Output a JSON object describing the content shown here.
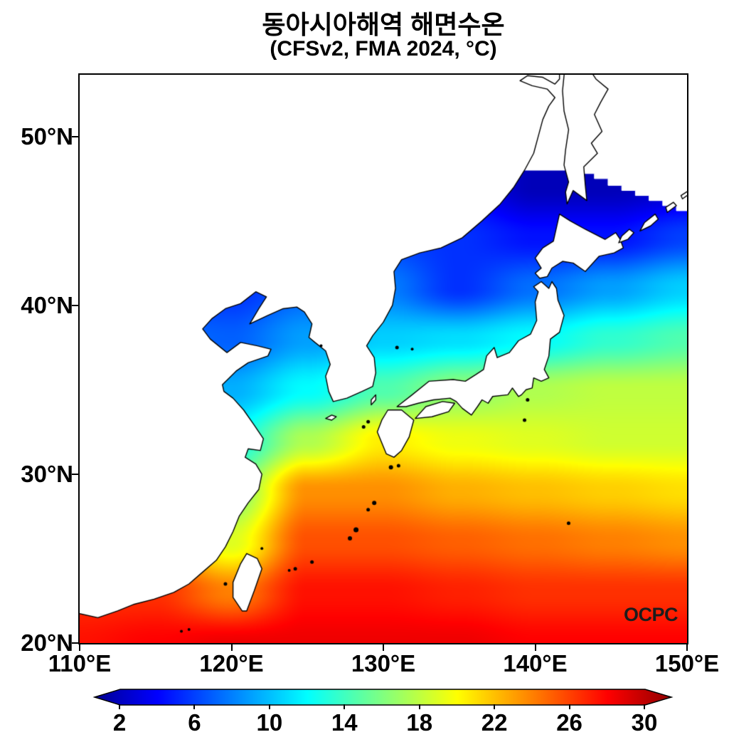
{
  "title": {
    "line1": "동아시아해역 해면수온",
    "line2": "(CFSv2, FMA 2024, °C)"
  },
  "watermark": "OCPC",
  "axes": {
    "x_ticks": [
      {
        "label": "110°E",
        "lon": 110
      },
      {
        "label": "120°E",
        "lon": 120
      },
      {
        "label": "130°E",
        "lon": 130
      },
      {
        "label": "140°E",
        "lon": 140
      },
      {
        "label": "150°E",
        "lon": 150
      }
    ],
    "y_ticks": [
      {
        "label": "50°N",
        "lat": 50
      },
      {
        "label": "40°N",
        "lat": 40
      },
      {
        "label": "30°N",
        "lat": 30
      },
      {
        "label": "20°N",
        "lat": 20
      }
    ]
  },
  "colorbar": {
    "unit": "°C",
    "scale_min": 0,
    "scale_max": 32,
    "ticks": [
      {
        "label": "2",
        "value": 2
      },
      {
        "label": "6",
        "value": 6
      },
      {
        "label": "10",
        "value": 10
      },
      {
        "label": "14",
        "value": 14
      },
      {
        "label": "18",
        "value": 18
      },
      {
        "label": "22",
        "value": 22
      },
      {
        "label": "26",
        "value": 26
      },
      {
        "label": "30",
        "value": 30
      }
    ],
    "extend": "both"
  },
  "chart_data": {
    "type": "heatmap",
    "title": "동아시아해역 해면수온 (CFSv2, FMA 2024, °C)",
    "colormap": "jet",
    "value_range": [
      0,
      32
    ],
    "lon_range": [
      110,
      150
    ],
    "lat_range": [
      20,
      53.65
    ],
    "lons": [
      110,
      115,
      120,
      125,
      130,
      135,
      140,
      145,
      150
    ],
    "lats": [
      20,
      23,
      26,
      29,
      32,
      35,
      38,
      41,
      44,
      47,
      50,
      53
    ],
    "sst_grid": [
      [
        27.5,
        28.0,
        28.5,
        28.5,
        28.5,
        28.5,
        28.0,
        28.0,
        28.0
      ],
      [
        26.5,
        26.5,
        24.0,
        27.5,
        27.5,
        27.0,
        26.5,
        26.5,
        26.5
      ],
      [
        24.5,
        23.0,
        19.0,
        25.5,
        25.5,
        25.0,
        24.5,
        24.0,
        23.5
      ],
      [
        20.0,
        19.0,
        16.0,
        23.5,
        23.5,
        22.5,
        22.0,
        21.5,
        21.0
      ],
      [
        15.0,
        14.5,
        12.5,
        17.5,
        20.5,
        19.5,
        19.0,
        18.5,
        18.5
      ],
      [
        11.0,
        10.5,
        9.5,
        12.0,
        14.5,
        16.5,
        17.5,
        18.0,
        18.0
      ],
      [
        8.0,
        7.5,
        7.0,
        9.0,
        10.5,
        11.0,
        12.0,
        13.5,
        14.5
      ],
      [
        6.0,
        5.5,
        5.5,
        7.0,
        8.0,
        5.5,
        7.5,
        9.0,
        10.5
      ],
      [
        4.0,
        4.0,
        4.0,
        5.0,
        6.0,
        5.5,
        4.5,
        4.5,
        6.0
      ],
      [
        2.5,
        2.5,
        2.5,
        3.5,
        4.5,
        4.0,
        1.8,
        1.8,
        2.5
      ],
      [
        2.0,
        2.0,
        2.0,
        3.0,
        4.0,
        3.5,
        1.8,
        1.5,
        2.0
      ],
      [
        2.0,
        2.0,
        2.0,
        3.0,
        3.5,
        3.0,
        1.8,
        1.5,
        2.0
      ]
    ],
    "nodata_mask": {
      "north_rect": [
        [
          109.7,
          48.0
        ],
        [
          142.0,
          48.0
        ],
        [
          142.0,
          54.5
        ],
        [
          109.7,
          54.5
        ]
      ],
      "okhotsk_stair_boundary": [
        [
          141.9,
          48.1
        ],
        [
          143.0,
          47.8
        ],
        [
          143.9,
          47.5
        ],
        [
          144.8,
          47.1
        ],
        [
          145.7,
          46.8
        ],
        [
          146.6,
          46.5
        ],
        [
          147.5,
          46.2
        ],
        [
          148.4,
          45.9
        ],
        [
          149.3,
          45.6
        ],
        [
          150.4,
          45.4
        ]
      ]
    },
    "coastlines": {
      "mainland_asia_korea": [
        [
          109.7,
          21.8
        ],
        [
          111.2,
          21.5
        ],
        [
          112.5,
          21.9
        ],
        [
          113.6,
          22.3
        ],
        [
          114.9,
          22.6
        ],
        [
          116.2,
          23.0
        ],
        [
          117.2,
          23.5
        ],
        [
          118.1,
          24.2
        ],
        [
          119.0,
          24.9
        ],
        [
          119.6,
          25.7
        ],
        [
          120.1,
          26.6
        ],
        [
          120.5,
          27.5
        ],
        [
          121.1,
          28.3
        ],
        [
          121.8,
          29.1
        ],
        [
          122.0,
          30.0
        ],
        [
          121.6,
          30.6
        ],
        [
          120.9,
          31.0
        ],
        [
          121.1,
          31.5
        ],
        [
          121.9,
          31.4
        ],
        [
          122.1,
          32.1
        ],
        [
          121.5,
          32.9
        ],
        [
          120.8,
          33.8
        ],
        [
          120.1,
          34.5
        ],
        [
          119.5,
          34.9
        ],
        [
          119.4,
          35.3
        ],
        [
          120.3,
          36.1
        ],
        [
          121.1,
          36.6
        ],
        [
          122.4,
          37.0
        ],
        [
          122.6,
          37.4
        ],
        [
          121.7,
          37.6
        ],
        [
          120.6,
          37.8
        ],
        [
          119.7,
          37.2
        ],
        [
          118.6,
          38.0
        ],
        [
          118.1,
          38.6
        ],
        [
          118.7,
          39.2
        ],
        [
          119.6,
          39.8
        ],
        [
          120.6,
          40.1
        ],
        [
          121.6,
          40.8
        ],
        [
          122.3,
          40.5
        ],
        [
          121.8,
          39.8
        ],
        [
          121.2,
          38.9
        ],
        [
          122.4,
          39.4
        ],
        [
          123.4,
          39.8
        ],
        [
          124.3,
          39.9
        ],
        [
          124.8,
          39.6
        ],
        [
          125.3,
          38.9
        ],
        [
          125.1,
          38.1
        ],
        [
          125.5,
          37.8
        ],
        [
          126.2,
          37.3
        ],
        [
          126.5,
          36.5
        ],
        [
          126.2,
          35.8
        ],
        [
          126.4,
          34.9
        ],
        [
          126.7,
          34.3
        ],
        [
          127.6,
          34.5
        ],
        [
          128.6,
          34.9
        ],
        [
          129.3,
          35.2
        ],
        [
          129.5,
          36.0
        ],
        [
          129.4,
          36.9
        ],
        [
          128.9,
          37.6
        ],
        [
          129.3,
          38.2
        ],
        [
          130.0,
          39.0
        ],
        [
          130.6,
          40.0
        ],
        [
          130.8,
          41.0
        ],
        [
          130.7,
          42.0
        ],
        [
          131.2,
          42.7
        ],
        [
          132.4,
          43.1
        ],
        [
          133.8,
          43.4
        ],
        [
          135.2,
          44.0
        ],
        [
          136.5,
          45.0
        ],
        [
          137.7,
          46.0
        ],
        [
          138.6,
          47.0
        ],
        [
          139.3,
          48.0
        ],
        [
          139.9,
          49.0
        ],
        [
          140.2,
          50.0
        ],
        [
          140.5,
          51.0
        ],
        [
          140.9,
          51.8
        ],
        [
          141.3,
          52.3
        ],
        [
          140.8,
          52.8
        ],
        [
          139.8,
          53.0
        ],
        [
          139.0,
          53.3
        ],
        [
          139.5,
          53.6
        ],
        [
          140.5,
          53.5
        ],
        [
          141.3,
          53.1
        ],
        [
          141.6,
          53.4
        ],
        [
          141.6,
          54.5
        ],
        [
          109.7,
          54.5
        ]
      ],
      "honshu": [
        [
          130.9,
          34.0
        ],
        [
          131.9,
          34.7
        ],
        [
          133.0,
          35.5
        ],
        [
          134.6,
          35.6
        ],
        [
          135.4,
          35.5
        ],
        [
          136.1,
          35.9
        ],
        [
          136.6,
          36.2
        ],
        [
          136.8,
          37.0
        ],
        [
          137.3,
          37.5
        ],
        [
          137.5,
          36.9
        ],
        [
          138.3,
          37.2
        ],
        [
          138.9,
          37.9
        ],
        [
          139.7,
          38.3
        ],
        [
          140.1,
          39.1
        ],
        [
          140.0,
          40.2
        ],
        [
          140.2,
          40.8
        ],
        [
          139.9,
          41.1
        ],
        [
          140.4,
          41.4
        ],
        [
          140.9,
          41.0
        ],
        [
          141.1,
          41.4
        ],
        [
          141.4,
          41.0
        ],
        [
          141.5,
          40.3
        ],
        [
          141.9,
          39.4
        ],
        [
          141.6,
          38.4
        ],
        [
          141.0,
          38.0
        ],
        [
          140.9,
          37.0
        ],
        [
          140.6,
          36.2
        ],
        [
          140.9,
          35.7
        ],
        [
          140.4,
          35.5
        ],
        [
          139.9,
          35.7
        ],
        [
          139.8,
          35.1
        ],
        [
          139.4,
          35.0
        ],
        [
          139.1,
          34.7
        ],
        [
          138.9,
          34.6
        ],
        [
          138.5,
          35.1
        ],
        [
          138.2,
          34.7
        ],
        [
          137.2,
          34.6
        ],
        [
          136.9,
          34.2
        ],
        [
          136.5,
          34.4
        ],
        [
          136.2,
          34.0
        ],
        [
          135.8,
          33.5
        ],
        [
          135.2,
          33.9
        ],
        [
          134.8,
          34.3
        ],
        [
          134.4,
          34.5
        ],
        [
          133.3,
          34.4
        ],
        [
          132.3,
          34.2
        ],
        [
          131.5,
          34.0
        ]
      ],
      "shikoku": [
        [
          132.1,
          33.3
        ],
        [
          133.2,
          33.4
        ],
        [
          134.3,
          33.7
        ],
        [
          134.7,
          34.2
        ],
        [
          133.9,
          34.3
        ],
        [
          132.8,
          34.0
        ]
      ],
      "kyushu": [
        [
          129.9,
          33.2
        ],
        [
          129.6,
          32.5
        ],
        [
          130.2,
          31.2
        ],
        [
          130.7,
          31.0
        ],
        [
          131.2,
          31.4
        ],
        [
          131.7,
          32.2
        ],
        [
          132.0,
          33.2
        ],
        [
          131.2,
          33.8
        ],
        [
          130.3,
          33.8
        ]
      ],
      "hokkaido": [
        [
          140.4,
          42.2
        ],
        [
          140.0,
          42.8
        ],
        [
          140.5,
          43.4
        ],
        [
          141.2,
          43.8
        ],
        [
          141.6,
          45.4
        ],
        [
          142.3,
          45.0
        ],
        [
          143.3,
          44.5
        ],
        [
          144.6,
          43.9
        ],
        [
          145.3,
          44.3
        ],
        [
          145.6,
          43.9
        ],
        [
          145.8,
          43.4
        ],
        [
          145.2,
          43.1
        ],
        [
          144.2,
          42.9
        ],
        [
          143.3,
          42.0
        ],
        [
          142.5,
          42.5
        ],
        [
          141.8,
          42.6
        ],
        [
          141.1,
          42.2
        ],
        [
          140.8,
          41.7
        ],
        [
          140.3,
          41.6
        ],
        [
          140.0,
          41.9
        ]
      ],
      "sakhalin": [
        [
          142.0,
          54.5
        ],
        [
          141.8,
          52.7
        ],
        [
          141.9,
          51.5
        ],
        [
          142.2,
          50.4
        ],
        [
          142.0,
          49.2
        ],
        [
          141.9,
          48.3
        ],
        [
          142.2,
          47.3
        ],
        [
          142.0,
          46.7
        ],
        [
          142.1,
          46.0
        ],
        [
          142.5,
          46.8
        ],
        [
          143.4,
          46.2
        ],
        [
          143.3,
          47.1
        ],
        [
          143.2,
          48.2
        ],
        [
          144.1,
          49.0
        ],
        [
          143.7,
          49.6
        ],
        [
          144.4,
          50.3
        ],
        [
          143.9,
          51.3
        ],
        [
          144.3,
          52.0
        ],
        [
          144.8,
          52.8
        ],
        [
          144.0,
          53.4
        ],
        [
          143.2,
          54.5
        ]
      ],
      "taiwan": [
        [
          121.0,
          25.3
        ],
        [
          121.7,
          25.0
        ],
        [
          122.0,
          24.4
        ],
        [
          121.5,
          23.1
        ],
        [
          121.0,
          21.9
        ],
        [
          120.7,
          21.9
        ],
        [
          120.1,
          22.7
        ],
        [
          120.1,
          23.6
        ],
        [
          120.6,
          24.7
        ]
      ],
      "tsushima": [
        [
          129.2,
          34.1
        ],
        [
          129.5,
          34.4
        ],
        [
          129.5,
          34.7
        ],
        [
          129.2,
          34.4
        ]
      ],
      "jeju": [
        [
          126.2,
          33.3
        ],
        [
          126.6,
          33.2
        ],
        [
          126.9,
          33.4
        ],
        [
          126.6,
          33.5
        ]
      ],
      "kunashiri": [
        [
          145.5,
          43.7
        ],
        [
          146.1,
          43.9
        ],
        [
          146.5,
          44.3
        ],
        [
          146.2,
          44.5
        ],
        [
          145.7,
          44.1
        ]
      ],
      "iturup": [
        [
          146.9,
          44.4
        ],
        [
          147.6,
          44.7
        ],
        [
          148.1,
          45.1
        ],
        [
          147.9,
          45.4
        ],
        [
          147.2,
          44.9
        ]
      ],
      "urup": [
        [
          148.7,
          45.5
        ],
        [
          149.3,
          45.9
        ],
        [
          149.1,
          46.1
        ],
        [
          148.6,
          45.8
        ]
      ],
      "kuril_ne": [
        [
          149.7,
          46.3
        ],
        [
          150.3,
          46.7
        ],
        [
          150.3,
          46.9
        ],
        [
          149.6,
          46.5
        ]
      ]
    },
    "islets": [
      [
        130.9,
        37.5,
        2.5
      ],
      [
        131.9,
        37.4,
        2.0
      ],
      [
        125.9,
        37.6,
        2.0
      ],
      [
        139.5,
        34.4,
        2.5
      ],
      [
        139.3,
        33.2,
        2.5
      ],
      [
        142.2,
        27.1,
        2.5
      ],
      [
        130.5,
        30.4,
        3.0
      ],
      [
        131.0,
        30.5,
        2.5
      ],
      [
        129.4,
        28.3,
        3.0
      ],
      [
        129.0,
        27.9,
        2.5
      ],
      [
        128.2,
        26.7,
        3.5
      ],
      [
        127.8,
        26.2,
        3.0
      ],
      [
        125.3,
        24.8,
        2.5
      ],
      [
        124.2,
        24.4,
        2.5
      ],
      [
        123.8,
        24.3,
        2.0
      ],
      [
        119.6,
        23.5,
        2.5
      ],
      [
        122.0,
        25.6,
        2.0
      ],
      [
        128.7,
        32.8,
        2.5
      ],
      [
        129.0,
        33.1,
        2.5
      ],
      [
        116.7,
        20.7,
        2.0
      ],
      [
        117.2,
        20.8,
        2.0
      ]
    ]
  }
}
